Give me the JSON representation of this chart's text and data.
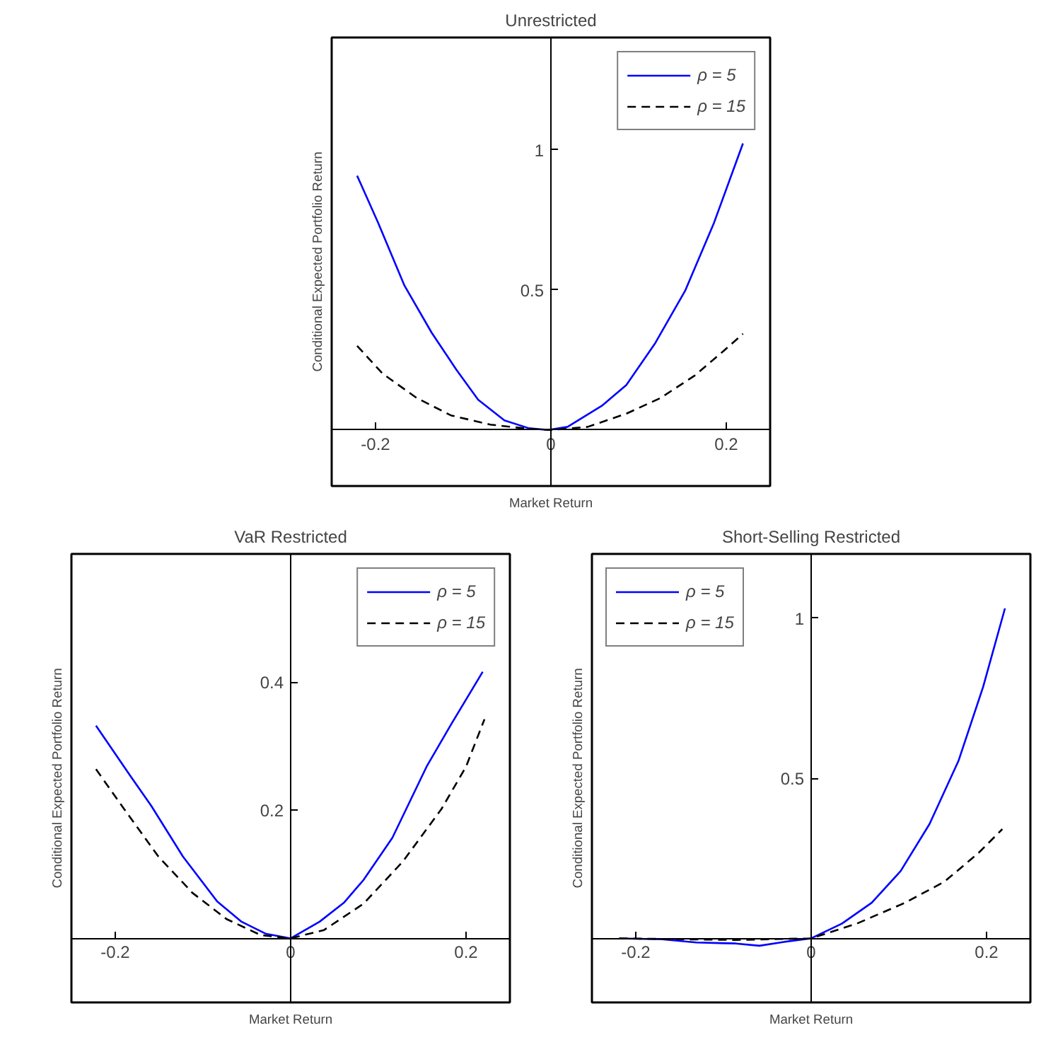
{
  "chart_data": [
    {
      "type": "line",
      "title": "Unrestricted",
      "xlabel": "Market Return",
      "ylabel": "Conditional Expected Portfolio Return",
      "xlim": [
        -0.25,
        0.25
      ],
      "ylim": [
        -0.2,
        1.4
      ],
      "xticks": [
        -0.2,
        0,
        0.2
      ],
      "yticks": [
        0.5,
        1
      ],
      "grid": false,
      "legend": "top right",
      "series": [
        {
          "name": "ρ = 5",
          "color": "#0000ff",
          "line_style": "solid",
          "x": [
            -0.221,
            -0.197,
            -0.167,
            -0.136,
            -0.108,
            -0.083,
            -0.053,
            -0.025,
            -0.003,
            0.019,
            0.058,
            0.086,
            0.119,
            0.153,
            0.186,
            0.219
          ],
          "values": [
            0.907,
            0.739,
            0.515,
            0.347,
            0.216,
            0.108,
            0.034,
            0.006,
            0,
            0.011,
            0.086,
            0.16,
            0.31,
            0.496,
            0.739,
            1.022
          ]
        },
        {
          "name": "ρ = 15",
          "color": "#000000",
          "line_style": "dashed",
          "x": [
            -0.221,
            -0.192,
            -0.153,
            -0.114,
            -0.069,
            -0.025,
            0,
            0.042,
            0.086,
            0.125,
            0.164,
            0.197,
            0.219
          ],
          "values": [
            0.3,
            0.201,
            0.114,
            0.052,
            0.019,
            0.004,
            0,
            0.011,
            0.058,
            0.114,
            0.194,
            0.282,
            0.343
          ]
        }
      ]
    },
    {
      "type": "line",
      "title": "VaR Restricted",
      "xlabel": "Market Return",
      "ylabel": "Conditional Expected Portfolio Return",
      "xlim": [
        -0.25,
        0.25
      ],
      "ylim": [
        -0.1,
        0.6
      ],
      "xticks": [
        -0.2,
        0,
        0.2
      ],
      "yticks": [
        0.2,
        0.4
      ],
      "grid": false,
      "legend": "top right",
      "series": [
        {
          "name": "ρ = 5",
          "color": "#0000ff",
          "line_style": "solid",
          "x": [
            -0.222,
            -0.182,
            -0.159,
            -0.123,
            -0.084,
            -0.056,
            -0.028,
            0,
            0.033,
            0.061,
            0.083,
            0.116,
            0.155,
            0.183,
            0.219
          ],
          "values": [
            0.332,
            0.252,
            0.207,
            0.128,
            0.058,
            0.026,
            0.007,
            0,
            0.026,
            0.056,
            0.091,
            0.157,
            0.268,
            0.334,
            0.416
          ]
        },
        {
          "name": "ρ = 15",
          "color": "#000000",
          "line_style": "dashed",
          "x": [
            -0.222,
            -0.19,
            -0.151,
            -0.112,
            -0.073,
            -0.034,
            0,
            0.038,
            0.083,
            0.128,
            0.172,
            0.2,
            0.221
          ],
          "values": [
            0.264,
            0.202,
            0.128,
            0.071,
            0.03,
            0.005,
            0,
            0.013,
            0.054,
            0.12,
            0.202,
            0.268,
            0.342
          ]
        }
      ]
    },
    {
      "type": "line",
      "title": "Short-Selling Restricted",
      "xlabel": "Market Return",
      "ylabel": "Conditional Expected Portfolio Return",
      "xlim": [
        -0.25,
        0.25
      ],
      "ylim": [
        -0.2,
        1.2
      ],
      "xticks": [
        -0.2,
        0,
        0.2
      ],
      "yticks": [
        0.5,
        1
      ],
      "grid": false,
      "legend": "top left",
      "series": [
        {
          "name": "ρ = 5",
          "color": "#0000ff",
          "line_style": "solid",
          "x": [
            -0.219,
            -0.17,
            -0.131,
            -0.086,
            -0.059,
            -0.031,
            0,
            0.035,
            0.069,
            0.102,
            0.135,
            0.168,
            0.196,
            0.221
          ],
          "values": [
            0,
            -0.003,
            -0.013,
            -0.016,
            -0.023,
            -0.011,
            0,
            0.046,
            0.111,
            0.21,
            0.357,
            0.554,
            0.784,
            1.03
          ]
        },
        {
          "name": "ρ = 15",
          "color": "#000000",
          "line_style": "dashed",
          "x": [
            -0.219,
            -0.142,
            -0.086,
            0,
            0.052,
            0.107,
            0.152,
            0.191,
            0.218
          ],
          "values": [
            0,
            -0.003,
            -0.005,
            0,
            0.046,
            0.111,
            0.177,
            0.267,
            0.341
          ]
        }
      ]
    }
  ]
}
